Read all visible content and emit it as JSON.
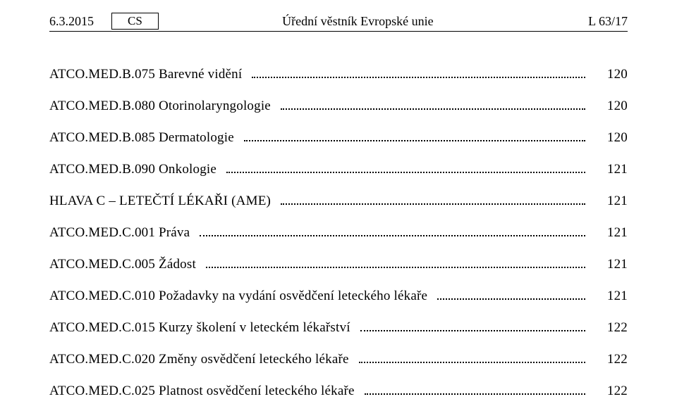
{
  "header": {
    "date": "6.3.2015",
    "lang": "CS",
    "title": "Úřední věstník Evropské unie",
    "pageref": "L 63/17"
  },
  "toc": [
    {
      "label": "ATCO.MED.B.075 Barevné vidění",
      "page": "120",
      "section": false
    },
    {
      "label": "ATCO.MED.B.080 Otorinolaryngologie",
      "page": "120",
      "section": false
    },
    {
      "label": "ATCO.MED.B.085 Dermatologie",
      "page": "120",
      "section": false
    },
    {
      "label": "ATCO.MED.B.090 Onkologie",
      "page": "121",
      "section": false
    },
    {
      "label": "HLAVA C – LETEČTÍ LÉKAŘI (AME)",
      "page": "121",
      "section": true
    },
    {
      "label": "ATCO.MED.C.001 Práva",
      "page": "121",
      "section": false
    },
    {
      "label": "ATCO.MED.C.005 Žádost",
      "page": "121",
      "section": false
    },
    {
      "label": "ATCO.MED.C.010 Požadavky na vydání osvědčení leteckého lékaře",
      "page": "121",
      "section": false
    },
    {
      "label": "ATCO.MED.C.015 Kurzy školení v leteckém lékařství",
      "page": "122",
      "section": false
    },
    {
      "label": "ATCO.MED.C.020 Změny osvědčení leteckého lékaře",
      "page": "122",
      "section": false
    },
    {
      "label": "ATCO.MED.C.025 Platnost osvědčení leteckého lékaře",
      "page": "122",
      "section": false
    }
  ]
}
